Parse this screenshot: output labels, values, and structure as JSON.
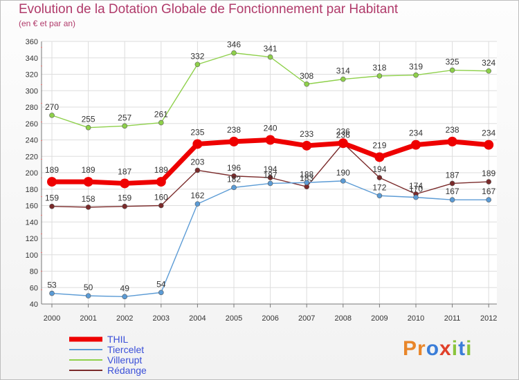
{
  "title": "Evolution de la Dotation Globale de Fonctionnement par Habitant",
  "subtitle": "(en € et par an)",
  "brand": {
    "letters": [
      "P",
      "r",
      "o",
      "x",
      "i",
      "t",
      "i"
    ],
    "colors": [
      "#e8862a",
      "#e8862a",
      "#3a7dd8",
      "#e0402a",
      "#8ac43c",
      "#3a7dd8",
      "#8ac43c"
    ]
  },
  "chart_data": {
    "type": "line",
    "title": "Evolution de la Dotation Globale de Fonctionnement par Habitant",
    "subtitle": "(en € et par an)",
    "xlabel": "",
    "ylabel": "",
    "ylim": [
      40,
      360
    ],
    "yticks": [
      40,
      60,
      80,
      100,
      120,
      140,
      160,
      180,
      200,
      220,
      240,
      260,
      280,
      300,
      320,
      340,
      360
    ],
    "categories": [
      "2000",
      "2001",
      "2002",
      "2003",
      "2004",
      "2005",
      "2006",
      "2007",
      "2008",
      "2009",
      "2010",
      "2011",
      "2012"
    ],
    "series": [
      {
        "name": "Rédange",
        "color": "#7a2a2a",
        "values": [
          159,
          158,
          159,
          160,
          203,
          196,
          194,
          183,
          236,
          194,
          174,
          187,
          189
        ]
      },
      {
        "name": "Villerupt",
        "color": "#8ed04a",
        "values": [
          270,
          255,
          257,
          261,
          332,
          346,
          341,
          308,
          314,
          318,
          319,
          325,
          324
        ]
      },
      {
        "name": "Tiercelet",
        "color": "#5b9bd5",
        "values": [
          53,
          50,
          49,
          54,
          162,
          182,
          187,
          188,
          190,
          172,
          170,
          167,
          167
        ]
      },
      {
        "name": "THIL",
        "color": "#ee0000",
        "values": [
          189,
          189,
          187,
          189,
          235,
          238,
          240,
          233,
          236,
          219,
          234,
          238,
          234
        ]
      }
    ],
    "legend": [
      "THIL",
      "Tiercelet",
      "Villerupt",
      "Rédange"
    ],
    "grid": true,
    "legend_position": "bottom-left"
  }
}
